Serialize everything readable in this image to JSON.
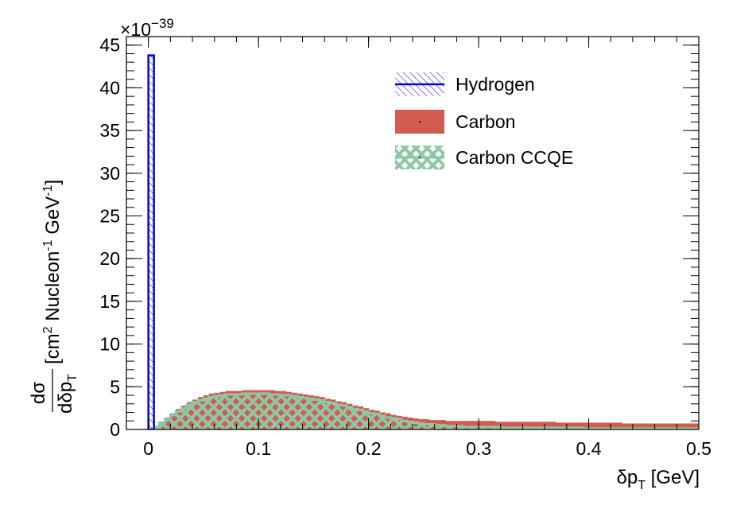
{
  "chart_data": {
    "type": "bar",
    "title": "",
    "xlabel": "δp_T [GeV]",
    "xlabel_parts": {
      "main": "δp",
      "sub": "T",
      "tail": " [GeV]"
    },
    "ylabel_parts": {
      "num": "dσ",
      "den": "dδp",
      "den_sub": "T",
      "unit_open": " [cm",
      "unit_sup1": "2",
      "unit_mid": " Nucleon",
      "unit_sup2": "-1",
      "unit_mid2": " GeV",
      "unit_sup3": "-1",
      "unit_close": "]"
    },
    "y_exponent_prefix": "×10",
    "y_exponent_power": "−39",
    "xlim": [
      -0.02,
      0.5
    ],
    "ylim": [
      0,
      46
    ],
    "x_ticks": [
      0,
      0.1,
      0.2,
      0.3,
      0.4,
      0.5
    ],
    "x_tick_labels": [
      "0",
      "0.1",
      "0.2",
      "0.3",
      "0.4",
      "0.5"
    ],
    "y_ticks": [
      0,
      5,
      10,
      15,
      20,
      25,
      30,
      35,
      40,
      45
    ],
    "y_tick_labels": [
      "0",
      "5",
      "10",
      "15",
      "20",
      "25",
      "30",
      "35",
      "40",
      "45"
    ],
    "legend_position": "top-right",
    "series": [
      {
        "name": "Hydrogen",
        "color": "#0000ee",
        "style": "outline hatched",
        "bins": [
          [
            0.0,
            0.005,
            43.8
          ]
        ]
      },
      {
        "name": "Carbon",
        "color": "#d35a4f",
        "style": "filled",
        "x": [
          0.005,
          0.01,
          0.015,
          0.02,
          0.025,
          0.03,
          0.035,
          0.04,
          0.045,
          0.05,
          0.055,
          0.06,
          0.065,
          0.07,
          0.075,
          0.08,
          0.085,
          0.09,
          0.095,
          0.1,
          0.105,
          0.11,
          0.115,
          0.12,
          0.125,
          0.13,
          0.135,
          0.14,
          0.145,
          0.15,
          0.155,
          0.16,
          0.165,
          0.17,
          0.175,
          0.18,
          0.185,
          0.19,
          0.195,
          0.2,
          0.205,
          0.21,
          0.215,
          0.22,
          0.225,
          0.23,
          0.235,
          0.24,
          0.245,
          0.25,
          0.255,
          0.26,
          0.265,
          0.27,
          0.275,
          0.28,
          0.285,
          0.29,
          0.295,
          0.3,
          0.305,
          0.31,
          0.315,
          0.32,
          0.325,
          0.33,
          0.335,
          0.34,
          0.345,
          0.35,
          0.355,
          0.36,
          0.365,
          0.37,
          0.375,
          0.38,
          0.385,
          0.39,
          0.395,
          0.4,
          0.405,
          0.41,
          0.415,
          0.42,
          0.425,
          0.43,
          0.435,
          0.44,
          0.445,
          0.45,
          0.455,
          0.46,
          0.465,
          0.47,
          0.475,
          0.48,
          0.485,
          0.49,
          0.495
        ],
        "values": [
          0.4,
          0.9,
          1.4,
          1.9,
          2.4,
          2.8,
          3.2,
          3.5,
          3.8,
          4.0,
          4.2,
          4.3,
          4.4,
          4.5,
          4.5,
          4.5,
          4.6,
          4.6,
          4.6,
          4.6,
          4.6,
          4.6,
          4.5,
          4.5,
          4.4,
          4.3,
          4.2,
          4.1,
          4.0,
          3.9,
          3.8,
          3.6,
          3.5,
          3.3,
          3.2,
          3.0,
          2.8,
          2.7,
          2.5,
          2.3,
          2.2,
          2.0,
          1.9,
          1.7,
          1.6,
          1.5,
          1.4,
          1.3,
          1.2,
          1.2,
          1.1,
          1.1,
          1.1,
          1.0,
          1.0,
          1.0,
          1.0,
          1.0,
          1.0,
          1.0,
          1.0,
          1.0,
          0.9,
          0.9,
          0.9,
          0.9,
          0.9,
          0.9,
          0.9,
          0.9,
          0.9,
          0.9,
          0.9,
          0.8,
          0.8,
          0.8,
          0.8,
          0.8,
          0.8,
          0.8,
          0.8,
          0.8,
          0.8,
          0.8,
          0.8,
          0.7,
          0.7,
          0.7,
          0.7,
          0.7,
          0.7,
          0.7,
          0.7,
          0.7,
          0.7,
          0.7,
          0.7,
          0.7,
          0.7
        ]
      },
      {
        "name": "Carbon CCQE",
        "color": "#8dc8a5",
        "style": "cross-hatched",
        "x": [
          0.005,
          0.01,
          0.015,
          0.02,
          0.025,
          0.03,
          0.035,
          0.04,
          0.045,
          0.05,
          0.055,
          0.06,
          0.065,
          0.07,
          0.075,
          0.08,
          0.085,
          0.09,
          0.095,
          0.1,
          0.105,
          0.11,
          0.115,
          0.12,
          0.125,
          0.13,
          0.135,
          0.14,
          0.145,
          0.15,
          0.155,
          0.16,
          0.165,
          0.17,
          0.175,
          0.18,
          0.185,
          0.19,
          0.195,
          0.2,
          0.205,
          0.21,
          0.215,
          0.22,
          0.225,
          0.23,
          0.235,
          0.24,
          0.245,
          0.25,
          0.255,
          0.26,
          0.265,
          0.27,
          0.275,
          0.28,
          0.285,
          0.29,
          0.295,
          0.3,
          0.305,
          0.31,
          0.315,
          0.32,
          0.325,
          0.33,
          0.335,
          0.34,
          0.345,
          0.35,
          0.355,
          0.36,
          0.365,
          0.37,
          0.375,
          0.38,
          0.385,
          0.39,
          0.395,
          0.4,
          0.405,
          0.41,
          0.415,
          0.42,
          0.425,
          0.43,
          0.435,
          0.44,
          0.445,
          0.45,
          0.455,
          0.46,
          0.465,
          0.47,
          0.475,
          0.48,
          0.485,
          0.49,
          0.495
        ],
        "values": [
          0.3,
          0.8,
          1.2,
          1.7,
          2.1,
          2.5,
          2.9,
          3.2,
          3.4,
          3.6,
          3.8,
          3.9,
          4.0,
          4.1,
          4.1,
          4.1,
          4.2,
          4.2,
          4.2,
          4.2,
          4.2,
          4.1,
          4.1,
          4.0,
          4.0,
          3.9,
          3.8,
          3.7,
          3.6,
          3.5,
          3.4,
          3.2,
          3.1,
          2.9,
          2.8,
          2.6,
          2.4,
          2.3,
          2.1,
          1.9,
          1.8,
          1.6,
          1.4,
          1.3,
          1.2,
          1.0,
          0.9,
          0.8,
          0.7,
          0.6,
          0.6,
          0.5,
          0.5,
          0.4,
          0.4,
          0.4,
          0.3,
          0.3,
          0.3,
          0.3,
          0.3,
          0.3,
          0.3,
          0.2,
          0.2,
          0.2,
          0.2,
          0.2,
          0.2,
          0.2,
          0.2,
          0.2,
          0.2,
          0.2,
          0.2,
          0.2,
          0.2,
          0.2,
          0.1,
          0.1,
          0.1,
          0.1,
          0.1,
          0.1,
          0.1,
          0.1,
          0.1,
          0.1,
          0.1,
          0.1,
          0.1,
          0.1,
          0.1,
          0.1,
          0.1,
          0.1,
          0.1,
          0.1,
          0.1
        ]
      }
    ]
  }
}
